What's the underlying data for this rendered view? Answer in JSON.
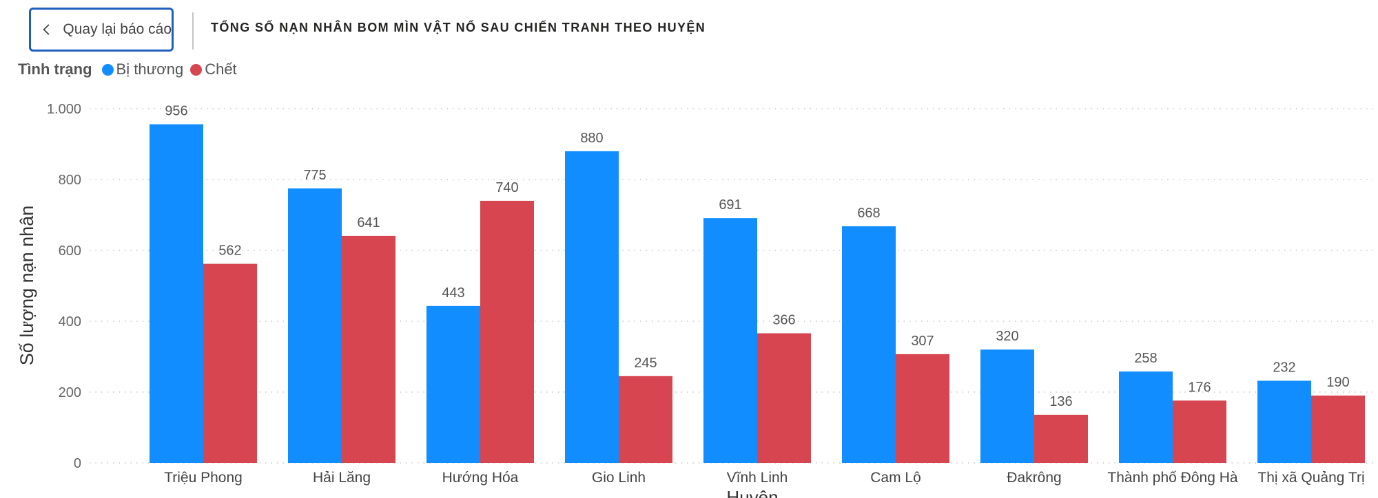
{
  "header": {
    "back_label": "Quay lại báo cáo",
    "title": "TỔNG SỐ NẠN NHÂN BOM MÌN VẬT NỔ SAU CHIẾN TRANH THEO HUYỆN"
  },
  "legend": {
    "title": "Tình trạng",
    "items": [
      {
        "label": "Bị thương",
        "color": "#118dff"
      },
      {
        "label": "Chết",
        "color": "#d64550"
      }
    ]
  },
  "chart_data": {
    "type": "bar",
    "title": "TỔNG SỐ NẠN NHÂN BOM MÌN VẬT NỔ SAU CHIẾN TRANH THEO HUYỆN",
    "xlabel": "Huyện",
    "ylabel": "Số lượng nạn nhân",
    "ylim": [
      0,
      1000
    ],
    "yticks": [
      0,
      200,
      400,
      600,
      800,
      1000
    ],
    "ytick_labels": [
      "0",
      "200",
      "400",
      "600",
      "800",
      "1.000"
    ],
    "grid": true,
    "legend_position": "top-left",
    "categories": [
      "Triệu Phong",
      "Hải Lăng",
      "Hướng Hóa",
      "Gio Linh",
      "Vĩnh Linh",
      "Cam Lộ",
      "Đakrông",
      "Thành phố Đông Hà",
      "Thị xã Quảng Trị"
    ],
    "series": [
      {
        "name": "Bị thương",
        "color": "#118dff",
        "values": [
          956,
          775,
          443,
          880,
          691,
          668,
          320,
          258,
          232
        ]
      },
      {
        "name": "Chết",
        "color": "#d64550",
        "values": [
          562,
          641,
          740,
          245,
          366,
          307,
          136,
          176,
          190
        ]
      }
    ]
  }
}
